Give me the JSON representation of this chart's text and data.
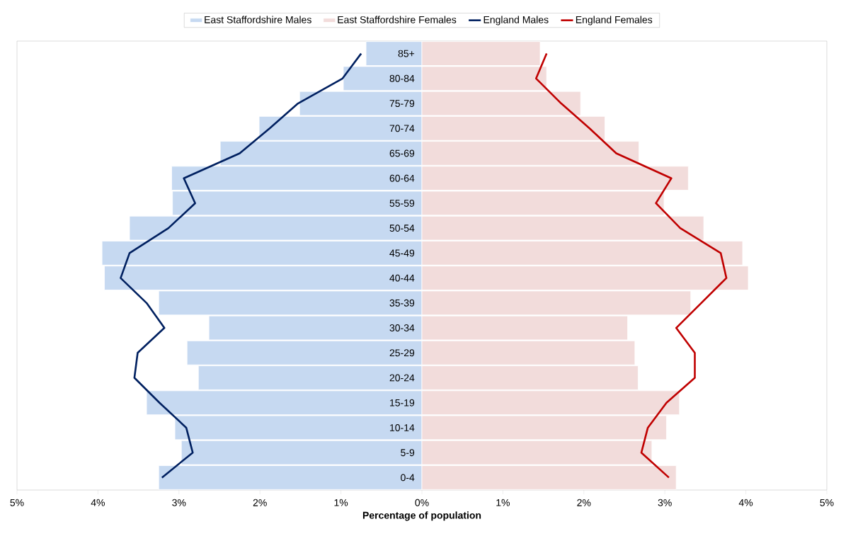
{
  "chart_data": {
    "type": "bar",
    "orientation": "horizontal",
    "xlabel": "Percentage of population",
    "categories": [
      "85+",
      "80-84",
      "75-79",
      "70-74",
      "65-69",
      "60-64",
      "55-59",
      "50-54",
      "45-49",
      "40-44",
      "35-39",
      "30-34",
      "25-29",
      "20-24",
      "15-19",
      "10-14",
      "5-9",
      "0-4"
    ],
    "series": [
      {
        "name": "East Staffordshire Males",
        "color": "#c6d9f1",
        "values": [
          -0.69,
          -0.97,
          -1.51,
          -2.01,
          -2.49,
          -3.09,
          -3.08,
          -3.61,
          -3.95,
          -3.92,
          -3.25,
          -2.63,
          -2.9,
          -2.76,
          -3.4,
          -3.05,
          -2.97,
          -3.25
        ]
      },
      {
        "name": "East Staffordshire Females",
        "color": "#f2dcdb",
        "values": [
          1.46,
          1.54,
          1.96,
          2.26,
          2.68,
          3.29,
          2.99,
          3.48,
          3.96,
          4.03,
          3.32,
          2.54,
          2.63,
          2.67,
          3.18,
          3.02,
          2.84,
          3.14
        ]
      },
      {
        "name": "England Males",
        "type": "line",
        "color": "#002060",
        "values": [
          -0.75,
          -0.98,
          -1.53,
          -1.88,
          -2.25,
          -2.94,
          -2.8,
          -3.13,
          -3.61,
          -3.72,
          -3.4,
          -3.18,
          -3.51,
          -3.55,
          -3.24,
          -2.91,
          -2.83,
          -3.21
        ]
      },
      {
        "name": "England Females",
        "type": "line",
        "color": "#c00000",
        "values": [
          1.54,
          1.41,
          1.72,
          2.07,
          2.4,
          3.08,
          2.89,
          3.19,
          3.69,
          3.76,
          3.45,
          3.14,
          3.37,
          3.37,
          3.02,
          2.79,
          2.71,
          3.05
        ]
      }
    ],
    "xlim": [
      -5,
      5
    ],
    "xticks": [
      {
        "value": -5,
        "label": "5%"
      },
      {
        "value": -4,
        "label": "4%"
      },
      {
        "value": -3,
        "label": "3%"
      },
      {
        "value": -2,
        "label": "2%"
      },
      {
        "value": -1,
        "label": "1%"
      },
      {
        "value": 0,
        "label": "0%"
      },
      {
        "value": 1,
        "label": "1%"
      },
      {
        "value": 2,
        "label": "2%"
      },
      {
        "value": 3,
        "label": "3%"
      },
      {
        "value": 4,
        "label": "4%"
      },
      {
        "value": 5,
        "label": "5%"
      }
    ],
    "stacked": true,
    "legend": "top",
    "grid": false
  }
}
